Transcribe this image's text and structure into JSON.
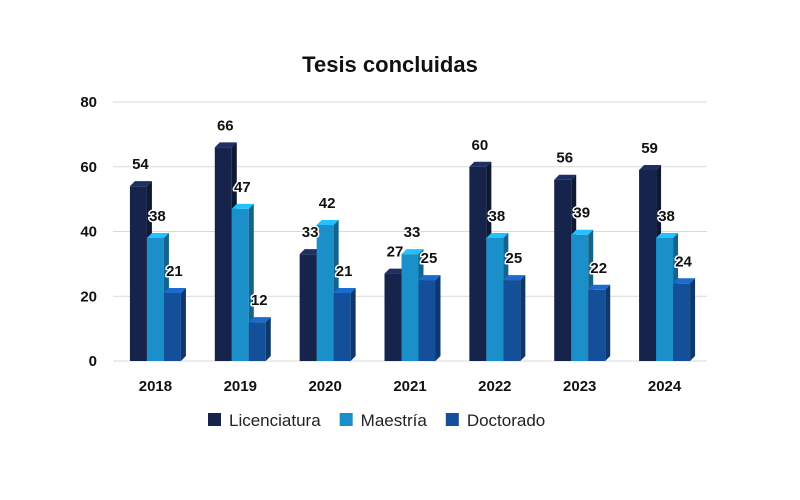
{
  "chart_data": {
    "type": "bar",
    "title": "Tesis concluidas",
    "categories": [
      "2018",
      "2019",
      "2020",
      "2021",
      "2022",
      "2023",
      "2024"
    ],
    "series": [
      {
        "name": "Licenciatura",
        "values": [
          54,
          66,
          33,
          27,
          60,
          56,
          59
        ],
        "color": "#16234a"
      },
      {
        "name": "Maestría",
        "values": [
          38,
          47,
          42,
          33,
          38,
          39,
          38
        ],
        "color": "#1a8fc9"
      },
      {
        "name": "Doctorado",
        "values": [
          21,
          12,
          21,
          25,
          25,
          22,
          24
        ],
        "color": "#14509a"
      }
    ],
    "ylim": [
      0,
      80
    ],
    "yticks": [
      0,
      20,
      40,
      60,
      80
    ],
    "grid": true,
    "legend": "bottom",
    "bar_style": "3d"
  }
}
